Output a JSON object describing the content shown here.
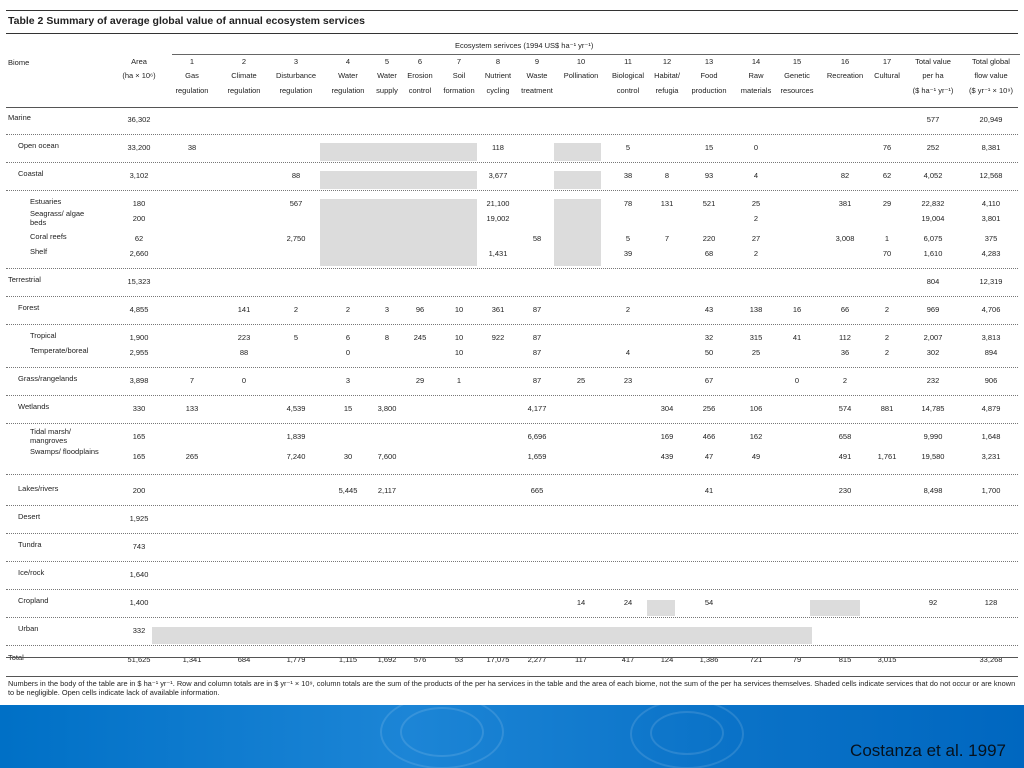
{
  "title": "Table 2 Summary of average global value of annual ecosystem services",
  "ecosystem_services_header": "Ecosystem serivces (1994 US$ ha⁻¹ yr⁻¹)",
  "biome_header": "Biome",
  "columns": [
    {
      "num": "",
      "l1": "Area",
      "l2": "(ha × 10⁶)",
      "l3": ""
    },
    {
      "num": "1",
      "l1": "Gas",
      "l2": "regulation",
      "l3": ""
    },
    {
      "num": "2",
      "l1": "Climate",
      "l2": "regulation",
      "l3": ""
    },
    {
      "num": "3",
      "l1": "Disturbance",
      "l2": "regulation",
      "l3": ""
    },
    {
      "num": "4",
      "l1": "Water",
      "l2": "regulation",
      "l3": ""
    },
    {
      "num": "5",
      "l1": "Water",
      "l2": "supply",
      "l3": ""
    },
    {
      "num": "6",
      "l1": "Erosion",
      "l2": "control",
      "l3": ""
    },
    {
      "num": "7",
      "l1": "Soil",
      "l2": "formation",
      "l3": ""
    },
    {
      "num": "8",
      "l1": "Nutrient",
      "l2": "cycling",
      "l3": ""
    },
    {
      "num": "9",
      "l1": "Waste",
      "l2": "treatment",
      "l3": ""
    },
    {
      "num": "10",
      "l1": "Pollination",
      "l2": "",
      "l3": ""
    },
    {
      "num": "11",
      "l1": "Biological",
      "l2": "control",
      "l3": ""
    },
    {
      "num": "12",
      "l1": "Habitat/",
      "l2": "refugia",
      "l3": ""
    },
    {
      "num": "13",
      "l1": "Food",
      "l2": "production",
      "l3": ""
    },
    {
      "num": "14",
      "l1": "Raw",
      "l2": "materials",
      "l3": ""
    },
    {
      "num": "15",
      "l1": "Genetic",
      "l2": "resources",
      "l3": ""
    },
    {
      "num": "16",
      "l1": "Recreation",
      "l2": "",
      "l3": ""
    },
    {
      "num": "17",
      "l1": "Cultural",
      "l2": "",
      "l3": ""
    },
    {
      "num": "",
      "l1": "Total value",
      "l2": "per ha",
      "l3": "($ ha⁻¹ yr⁻¹)"
    },
    {
      "num": "",
      "l1": "Total global",
      "l2": "flow value",
      "l3": "($ yr⁻¹ × 10⁹)"
    }
  ],
  "rows": [
    {
      "name": "Marine",
      "indent": 0,
      "cells": [
        "36,302",
        "",
        "",
        "",
        "",
        "",
        "",
        "",
        "",
        "",
        "",
        "",
        "",
        "",
        "",
        "",
        "",
        "",
        "577",
        "20,949"
      ]
    },
    {
      "name": "Open ocean",
      "indent": 1,
      "cells": [
        "33,200",
        "38",
        "",
        "",
        "",
        "",
        "",
        "",
        "118",
        "",
        "",
        "5",
        "",
        "15",
        "0",
        "",
        "",
        "76",
        "252",
        "8,381"
      ]
    },
    {
      "name": "Coastal",
      "indent": 1,
      "cells": [
        "3,102",
        "",
        "",
        "88",
        "",
        "",
        "",
        "",
        "3,677",
        "",
        "",
        "38",
        "8",
        "93",
        "4",
        "",
        "82",
        "62",
        "4,052",
        "12,568"
      ]
    },
    {
      "name": "Estuaries",
      "indent": 2,
      "cells": [
        "180",
        "",
        "",
        "567",
        "",
        "",
        "",
        "",
        "21,100",
        "",
        "",
        "78",
        "131",
        "521",
        "25",
        "",
        "381",
        "29",
        "22,832",
        "4,110"
      ]
    },
    {
      "name": "Seagrass/ algae beds",
      "indent": 2,
      "cells": [
        "200",
        "",
        "",
        "",
        "",
        "",
        "",
        "",
        "19,002",
        "",
        "",
        "",
        "",
        "",
        "2",
        "",
        "",
        "",
        "19,004",
        "3,801"
      ]
    },
    {
      "name": "Coral reefs",
      "indent": 2,
      "cells": [
        "62",
        "",
        "",
        "2,750",
        "",
        "",
        "",
        "",
        "",
        "58",
        "",
        "5",
        "7",
        "220",
        "27",
        "",
        "3,008",
        "1",
        "6,075",
        "375"
      ]
    },
    {
      "name": "Shelf",
      "indent": 2,
      "cells": [
        "2,660",
        "",
        "",
        "",
        "",
        "",
        "",
        "",
        "1,431",
        "",
        "",
        "39",
        "",
        "68",
        "2",
        "",
        "",
        "70",
        "1,610",
        "4,283"
      ]
    },
    {
      "name": "Terrestrial",
      "indent": 0,
      "cells": [
        "15,323",
        "",
        "",
        "",
        "",
        "",
        "",
        "",
        "",
        "",
        "",
        "",
        "",
        "",
        "",
        "",
        "",
        "",
        "804",
        "12,319"
      ]
    },
    {
      "name": "Forest",
      "indent": 1,
      "cells": [
        "4,855",
        "",
        "141",
        "2",
        "2",
        "3",
        "96",
        "10",
        "361",
        "87",
        "",
        "2",
        "",
        "43",
        "138",
        "16",
        "66",
        "2",
        "969",
        "4,706"
      ]
    },
    {
      "name": "Tropical",
      "indent": 2,
      "cells": [
        "1,900",
        "",
        "223",
        "5",
        "6",
        "8",
        "245",
        "10",
        "922",
        "87",
        "",
        "",
        "",
        "32",
        "315",
        "41",
        "112",
        "2",
        "2,007",
        "3,813"
      ]
    },
    {
      "name": "Temperate/boreal",
      "indent": 2,
      "cells": [
        "2,955",
        "",
        "88",
        "",
        "0",
        "",
        "",
        "10",
        "",
        "87",
        "",
        "4",
        "",
        "50",
        "25",
        "",
        "36",
        "2",
        "302",
        "894"
      ]
    },
    {
      "name": "Grass/rangelands",
      "indent": 1,
      "cells": [
        "3,898",
        "7",
        "0",
        "",
        "3",
        "",
        "29",
        "1",
        "",
        "87",
        "25",
        "23",
        "",
        "67",
        "",
        "0",
        "2",
        "",
        "232",
        "906"
      ]
    },
    {
      "name": "Wetlands",
      "indent": 1,
      "cells": [
        "330",
        "133",
        "",
        "4,539",
        "15",
        "3,800",
        "",
        "",
        "",
        "4,177",
        "",
        "",
        "304",
        "256",
        "106",
        "",
        "574",
        "881",
        "14,785",
        "4,879"
      ]
    },
    {
      "name": "Tidal marsh/ mangroves",
      "indent": 2,
      "cells": [
        "165",
        "",
        "",
        "1,839",
        "",
        "",
        "",
        "",
        "",
        "6,696",
        "",
        "",
        "169",
        "466",
        "162",
        "",
        "658",
        "",
        "9,990",
        "1,648"
      ]
    },
    {
      "name": "Swamps/ floodplains",
      "indent": 2,
      "cells": [
        "165",
        "265",
        "",
        "7,240",
        "30",
        "7,600",
        "",
        "",
        "",
        "1,659",
        "",
        "",
        "439",
        "47",
        "49",
        "",
        "491",
        "1,761",
        "19,580",
        "3,231"
      ]
    },
    {
      "name": "Lakes/rivers",
      "indent": 1,
      "cells": [
        "200",
        "",
        "",
        "",
        "5,445",
        "2,117",
        "",
        "",
        "",
        "665",
        "",
        "",
        "",
        "41",
        "",
        "",
        "230",
        "",
        "8,498",
        "1,700"
      ]
    },
    {
      "name": "Desert",
      "indent": 1,
      "cells": [
        "1,925",
        "",
        "",
        "",
        "",
        "",
        "",
        "",
        "",
        "",
        "",
        "",
        "",
        "",
        "",
        "",
        "",
        "",
        "",
        ""
      ]
    },
    {
      "name": "Tundra",
      "indent": 1,
      "cells": [
        "743",
        "",
        "",
        "",
        "",
        "",
        "",
        "",
        "",
        "",
        "",
        "",
        "",
        "",
        "",
        "",
        "",
        "",
        "",
        ""
      ]
    },
    {
      "name": "Ice/rock",
      "indent": 1,
      "cells": [
        "1,640",
        "",
        "",
        "",
        "",
        "",
        "",
        "",
        "",
        "",
        "",
        "",
        "",
        "",
        "",
        "",
        "",
        "",
        "",
        ""
      ]
    },
    {
      "name": "Cropland",
      "indent": 1,
      "cells": [
        "1,400",
        "",
        "",
        "",
        "",
        "",
        "",
        "",
        "",
        "",
        "14",
        "24",
        "",
        "54",
        "",
        "",
        "",
        "",
        "92",
        "128"
      ]
    },
    {
      "name": "Urban",
      "indent": 1,
      "cells": [
        "332",
        "",
        "",
        "",
        "",
        "",
        "",
        "",
        "",
        "",
        "",
        "",
        "",
        "",
        "",
        "",
        "",
        "",
        "",
        ""
      ]
    },
    {
      "name": "Total",
      "indent": 0,
      "cells": [
        "51,625",
        "1,341",
        "684",
        "1,779",
        "1,115",
        "1,692",
        "576",
        "53",
        "17,075",
        "2,277",
        "117",
        "417",
        "124",
        "1,386",
        "721",
        "79",
        "815",
        "3,015",
        "",
        "33,268"
      ]
    }
  ],
  "footnote": "Numbers in the body of the table are in $ ha⁻¹ yr⁻¹. Row and column totals are in $ yr⁻¹ × 10⁹, column totals are the sum of the products of the per ha services in the table and the area of each biome, not the sum of the per ha services themselves. Shaded cells indicate services that do not occur or are known to be negligible. Open cells indicate lack of available information.",
  "credit": "Costanza et al. 1997",
  "colors": {
    "shade": "#dcdcdc",
    "footer": "#0a72c6"
  }
}
